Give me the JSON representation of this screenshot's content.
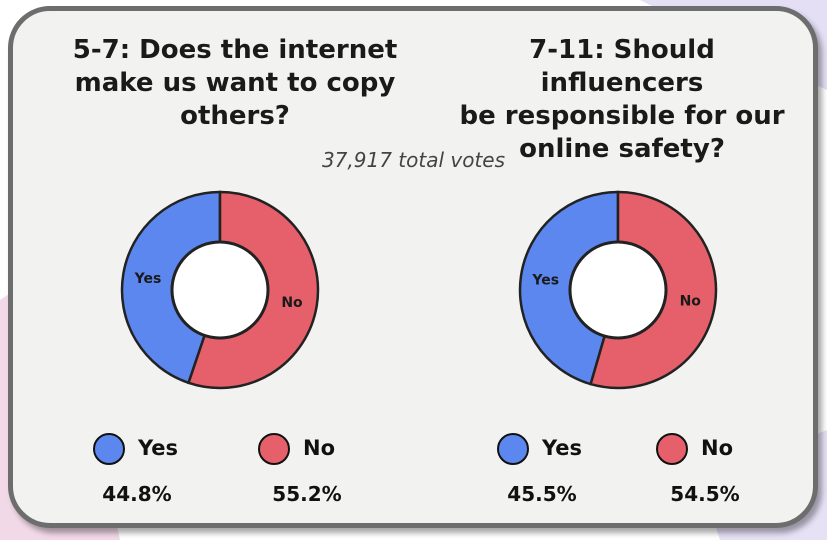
{
  "total_votes": "37,917 total votes",
  "colors": {
    "yes": "#5b87ef",
    "no": "#e5606a",
    "ring": "#222222"
  },
  "chart_data": [
    {
      "type": "pie",
      "title": "5-7: Does the internet\nmake us want to copy\nothers?",
      "slice_labels": [
        "Yes",
        "No"
      ],
      "values": [
        44.8,
        55.2
      ],
      "value_labels": [
        "44.8%",
        "55.2%"
      ],
      "legend": [
        "Yes",
        "No"
      ],
      "legend_placement": "bottom",
      "donut": true
    },
    {
      "type": "pie",
      "title": "7-11: Should influencers\nbe responsible for our\nonline safety?",
      "slice_labels": [
        "Yes",
        "No"
      ],
      "values": [
        45.5,
        54.5
      ],
      "value_labels": [
        "45.5%",
        "54.5%"
      ],
      "legend": [
        "Yes",
        "No"
      ],
      "legend_placement": "bottom",
      "donut": true
    }
  ]
}
